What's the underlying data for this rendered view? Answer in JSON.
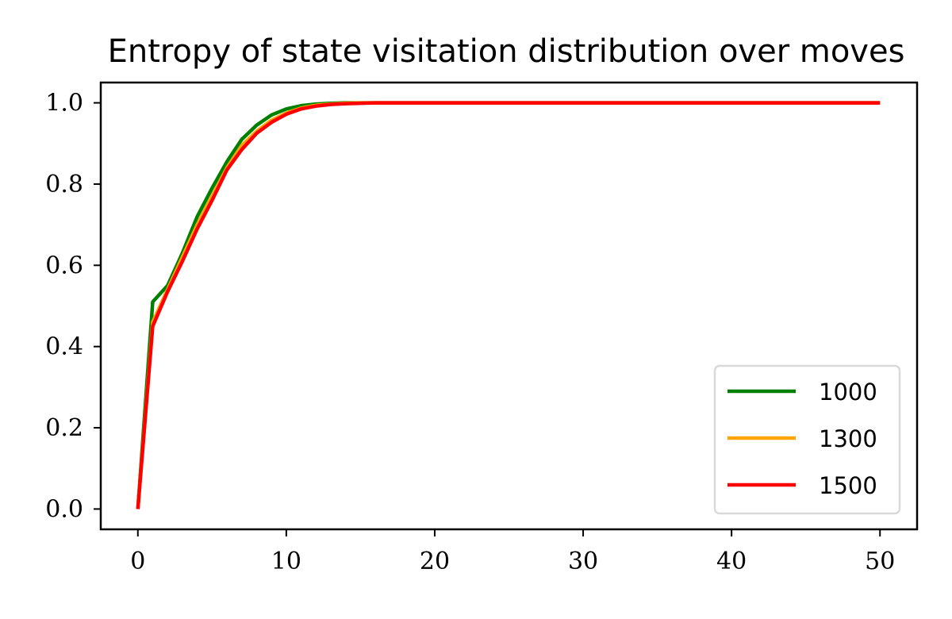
{
  "chart_data": {
    "type": "line",
    "title": "Entropy of state visitation distribution over moves",
    "xlabel": "",
    "ylabel": "",
    "xlim": [
      -2.5,
      52.5
    ],
    "ylim": [
      -0.05,
      1.05
    ],
    "xticks": [
      0,
      10,
      20,
      30,
      40,
      50
    ],
    "xtick_labels": [
      "0",
      "10",
      "20",
      "30",
      "40",
      "50"
    ],
    "yticks": [
      0.0,
      0.2,
      0.4,
      0.6,
      0.8,
      1.0
    ],
    "ytick_labels": [
      "0.0",
      "0.2",
      "0.4",
      "0.6",
      "0.8",
      "1.0"
    ],
    "grid": false,
    "legend_position": "lower-right",
    "x": [
      0,
      1,
      2,
      3,
      4,
      5,
      6,
      7,
      8,
      9,
      10,
      11,
      12,
      13,
      14,
      15,
      16,
      17,
      18,
      19,
      20,
      21,
      22,
      23,
      24,
      25,
      26,
      27,
      28,
      29,
      30,
      31,
      32,
      33,
      34,
      35,
      36,
      37,
      38,
      39,
      40,
      41,
      42,
      43,
      44,
      45,
      46,
      47,
      48,
      49,
      50
    ],
    "series": [
      {
        "name": "1000",
        "color": "#008000",
        "values": [
          0.0,
          0.51,
          0.55,
          0.63,
          0.72,
          0.79,
          0.855,
          0.91,
          0.945,
          0.97,
          0.985,
          0.993,
          0.997,
          0.999,
          1.0,
          1.0,
          1.0,
          1.0,
          1.0,
          1.0,
          1.0,
          1.0,
          1.0,
          1.0,
          1.0,
          1.0,
          1.0,
          1.0,
          1.0,
          1.0,
          1.0,
          1.0,
          1.0,
          1.0,
          1.0,
          1.0,
          1.0,
          1.0,
          1.0,
          1.0,
          1.0,
          1.0,
          1.0,
          1.0,
          1.0,
          1.0,
          1.0,
          1.0,
          1.0,
          1.0,
          1.0
        ]
      },
      {
        "name": "1300",
        "color": "#FFA500",
        "values": [
          0.0,
          0.46,
          0.54,
          0.62,
          0.7,
          0.77,
          0.84,
          0.895,
          0.93,
          0.957,
          0.975,
          0.987,
          0.994,
          0.997,
          0.999,
          1.0,
          1.0,
          1.0,
          1.0,
          1.0,
          1.0,
          1.0,
          1.0,
          1.0,
          1.0,
          1.0,
          1.0,
          1.0,
          1.0,
          1.0,
          1.0,
          1.0,
          1.0,
          1.0,
          1.0,
          1.0,
          1.0,
          1.0,
          1.0,
          1.0,
          1.0,
          1.0,
          1.0,
          1.0,
          1.0,
          1.0,
          1.0,
          1.0,
          1.0,
          1.0,
          1.0
        ]
      },
      {
        "name": "1500",
        "color": "#FF0000",
        "values": [
          0.0,
          0.45,
          0.535,
          0.61,
          0.69,
          0.76,
          0.835,
          0.885,
          0.925,
          0.952,
          0.972,
          0.985,
          0.992,
          0.996,
          0.998,
          0.999,
          1.0,
          1.0,
          1.0,
          1.0,
          1.0,
          1.0,
          1.0,
          1.0,
          1.0,
          1.0,
          1.0,
          1.0,
          1.0,
          1.0,
          1.0,
          1.0,
          1.0,
          1.0,
          1.0,
          1.0,
          1.0,
          1.0,
          1.0,
          1.0,
          1.0,
          1.0,
          1.0,
          1.0,
          1.0,
          1.0,
          1.0,
          1.0,
          1.0,
          1.0,
          1.0
        ]
      }
    ]
  }
}
